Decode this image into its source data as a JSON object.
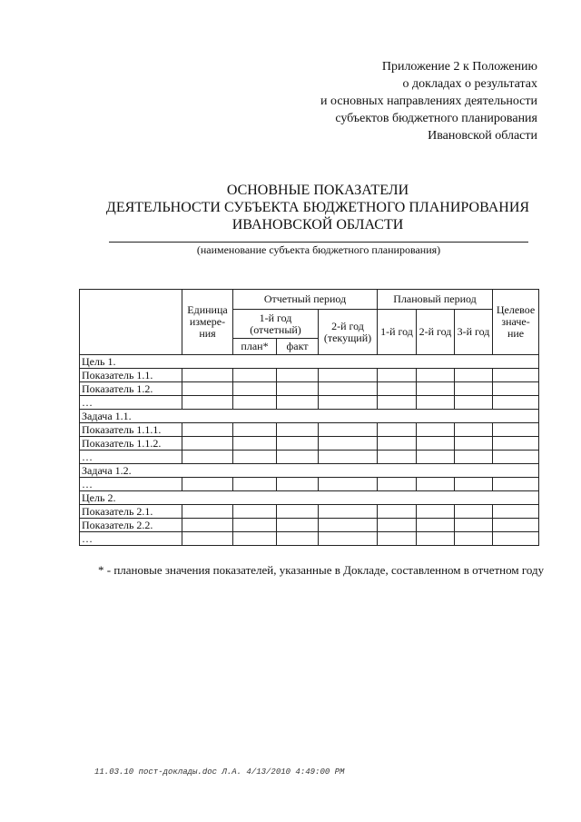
{
  "appendix": [
    "Приложение 2 к Положению",
    "о докладах о результатах",
    "и основных направлениях деятельности",
    "субъектов бюджетного планирования",
    "Ивановской области"
  ],
  "title": [
    "ОСНОВНЫЕ ПОКАЗАТЕЛИ",
    "ДЕЯТЕЛЬНОСТИ СУБЪЕКТА БЮДЖЕТНОГО ПЛАНИРОВАНИЯ",
    "ИВАНОВСКОЙ ОБЛАСТИ"
  ],
  "subject_caption": "(наименование субъекта бюджетного планирования)",
  "table": {
    "headers": {
      "unit": "Единица измере-ния",
      "reporting_period": "Отчетный период",
      "year1_reporting": "1-й год (отчетный)",
      "plan": "план*",
      "fact": "факт",
      "year2_current": "2-й год (текущий)",
      "planning_period": "Плановый период",
      "p1": "1-й год",
      "p2": "2-й год",
      "p3": "3-й год",
      "target": "Целевое значе-ние"
    },
    "rows": [
      {
        "label": "Цель 1.",
        "span": true
      },
      {
        "label": "Показатель 1.1."
      },
      {
        "label": "Показатель 1.2."
      },
      {
        "label": "…"
      },
      {
        "label": "Задача 1.1.",
        "span": true
      },
      {
        "label": "Показатель 1.1.1."
      },
      {
        "label": "Показатель 1.1.2."
      },
      {
        "label": "…"
      },
      {
        "label": "Задача 1.2.",
        "span": true
      },
      {
        "label": "…"
      },
      {
        "label": "Цель 2.",
        "span": true
      },
      {
        "label": "Показатель 2.1."
      },
      {
        "label": "Показатель 2.2."
      },
      {
        "label": "…"
      }
    ]
  },
  "note": "* - плановые значения показателей, указанные в Докладе, составленном в отчетном году",
  "footer": "11.03.10  пост-доклады.doc Л.А. 4/13/2010 4:49:00 PM"
}
